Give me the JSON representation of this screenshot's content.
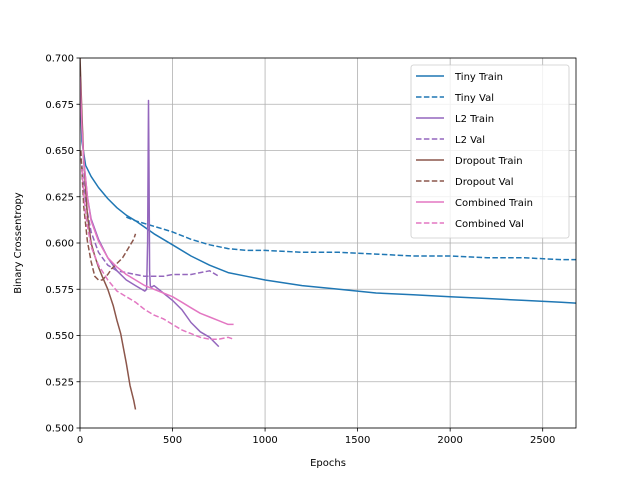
{
  "chart_data": {
    "type": "line",
    "xlabel": "Epochs",
    "ylabel": "Binary Crossentropy",
    "xlim": [
      0,
      2680
    ],
    "ylim": [
      0.5,
      0.7
    ],
    "xticks": [
      0,
      500,
      1000,
      1500,
      2000,
      2500
    ],
    "yticks": [
      0.5,
      0.525,
      0.55,
      0.575,
      0.6,
      0.625,
      0.65,
      0.675,
      0.7
    ],
    "xtick_labels": [
      "0",
      "500",
      "1000",
      "1500",
      "2000",
      "2500"
    ],
    "ytick_labels": [
      "0.500",
      "0.525",
      "0.550",
      "0.575",
      "0.600",
      "0.625",
      "0.650",
      "0.675",
      "0.700"
    ],
    "grid": true,
    "legend_position": "top-right",
    "series": [
      {
        "name": "Tiny Train",
        "color": "#1f77b4",
        "dash": "solid",
        "x": [
          0,
          10,
          30,
          60,
          100,
          150,
          200,
          250,
          300,
          400,
          500,
          600,
          700,
          800,
          900,
          1000,
          1200,
          1400,
          1600,
          1800,
          2000,
          2200,
          2400,
          2600,
          2680
        ],
        "y": [
          0.69,
          0.655,
          0.642,
          0.636,
          0.63,
          0.624,
          0.619,
          0.615,
          0.612,
          0.605,
          0.599,
          0.593,
          0.588,
          0.584,
          0.582,
          0.58,
          0.577,
          0.575,
          0.573,
          0.572,
          0.571,
          0.57,
          0.569,
          0.568,
          0.5675
        ]
      },
      {
        "name": "Tiny Val",
        "color": "#1f77b4",
        "dash": "dashed",
        "x": [
          250,
          300,
          400,
          500,
          600,
          700,
          800,
          900,
          1000,
          1200,
          1400,
          1600,
          1800,
          2000,
          2200,
          2400,
          2600,
          2680
        ],
        "y": [
          0.614,
          0.612,
          0.609,
          0.606,
          0.602,
          0.599,
          0.597,
          0.596,
          0.596,
          0.595,
          0.595,
          0.594,
          0.593,
          0.593,
          0.592,
          0.592,
          0.591,
          0.591
        ]
      },
      {
        "name": "L2 Train",
        "color": "#9467bd",
        "dash": "solid",
        "x": [
          0,
          10,
          20,
          40,
          60,
          100,
          150,
          200,
          250,
          300,
          350,
          360,
          365,
          370,
          373,
          376,
          380,
          385,
          400,
          450,
          500,
          550,
          600,
          650,
          700,
          750
        ],
        "y": [
          0.69,
          0.665,
          0.645,
          0.625,
          0.613,
          0.602,
          0.592,
          0.585,
          0.58,
          0.577,
          0.574,
          0.575,
          0.6,
          0.677,
          0.64,
          0.585,
          0.577,
          0.576,
          0.577,
          0.573,
          0.569,
          0.564,
          0.557,
          0.552,
          0.549,
          0.544
        ]
      },
      {
        "name": "L2 Val",
        "color": "#9467bd",
        "dash": "dashed",
        "x": [
          10,
          30,
          60,
          100,
          150,
          200,
          250,
          300,
          350,
          400,
          450,
          500,
          550,
          600,
          650,
          700,
          750
        ],
        "y": [
          0.642,
          0.622,
          0.606,
          0.595,
          0.588,
          0.585,
          0.584,
          0.583,
          0.582,
          0.582,
          0.582,
          0.583,
          0.583,
          0.583,
          0.584,
          0.585,
          0.582
        ]
      },
      {
        "name": "Dropout Train",
        "color": "#8c564b",
        "dash": "solid",
        "x": [
          0,
          10,
          20,
          40,
          60,
          80,
          100,
          120,
          150,
          180,
          200,
          220,
          250,
          270,
          290,
          300
        ],
        "y": [
          0.7,
          0.67,
          0.645,
          0.615,
          0.6,
          0.593,
          0.587,
          0.582,
          0.575,
          0.566,
          0.558,
          0.551,
          0.535,
          0.523,
          0.515,
          0.51
        ]
      },
      {
        "name": "Dropout Val",
        "color": "#8c564b",
        "dash": "dashed",
        "x": [
          5,
          20,
          40,
          60,
          80,
          100,
          120,
          150,
          170,
          200,
          230,
          260,
          290,
          300
        ],
        "y": [
          0.65,
          0.62,
          0.601,
          0.59,
          0.582,
          0.58,
          0.58,
          0.583,
          0.586,
          0.589,
          0.592,
          0.597,
          0.602,
          0.605
        ]
      },
      {
        "name": "Combined Train",
        "color": "#e377c2",
        "dash": "solid",
        "x": [
          0,
          10,
          20,
          40,
          60,
          100,
          150,
          200,
          250,
          300,
          350,
          400,
          450,
          500,
          550,
          600,
          650,
          700,
          750,
          800,
          830
        ],
        "y": [
          0.69,
          0.662,
          0.645,
          0.625,
          0.612,
          0.601,
          0.592,
          0.587,
          0.583,
          0.58,
          0.577,
          0.575,
          0.573,
          0.571,
          0.568,
          0.565,
          0.562,
          0.56,
          0.558,
          0.556,
          0.556
        ]
      },
      {
        "name": "Combined Val",
        "color": "#e377c2",
        "dash": "dashed",
        "x": [
          10,
          30,
          60,
          100,
          150,
          200,
          250,
          300,
          350,
          400,
          450,
          500,
          550,
          600,
          650,
          700,
          750,
          800,
          830
        ],
        "y": [
          0.64,
          0.615,
          0.598,
          0.588,
          0.58,
          0.574,
          0.571,
          0.568,
          0.564,
          0.561,
          0.559,
          0.556,
          0.553,
          0.551,
          0.549,
          0.548,
          0.548,
          0.549,
          0.548
        ]
      }
    ]
  }
}
